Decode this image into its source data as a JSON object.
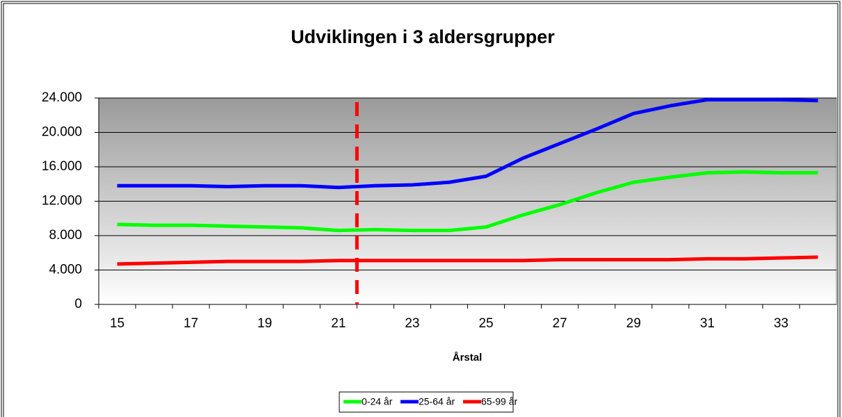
{
  "chart_data": {
    "type": "line",
    "title": "Udviklingen i 3 aldersgrupper",
    "xlabel": "Årstal",
    "x": [
      15,
      16,
      17,
      18,
      19,
      20,
      21,
      22,
      23,
      24,
      25,
      26,
      27,
      28,
      29,
      30,
      31,
      32,
      33,
      34
    ],
    "xlim": [
      14.5,
      34.5
    ],
    "xticks": [
      15,
      17,
      19,
      21,
      23,
      25,
      27,
      29,
      31,
      33
    ],
    "ylim": [
      0,
      24000
    ],
    "yticks": [
      0,
      {
        "value": 4000,
        "label": "4.000"
      },
      {
        "value": 8000,
        "label": "8.000"
      },
      {
        "value": 12000,
        "label": "12.000"
      },
      {
        "value": 16000,
        "label": "16.000"
      },
      {
        "value": 20000,
        "label": "20.000"
      },
      {
        "value": 24000,
        "label": "24.000"
      }
    ],
    "grid": true,
    "legend": "bottom",
    "reference_line": {
      "x": 21.5,
      "color": "#ff0000",
      "style": "dashed"
    },
    "series": [
      {
        "name": "0-24 år",
        "color": "#00ff00",
        "values": [
          9300,
          9200,
          9200,
          9100,
          9000,
          8900,
          8600,
          8700,
          8600,
          8600,
          9000,
          10400,
          11600,
          13000,
          14200,
          14800,
          15300,
          15400,
          15300,
          15300
        ]
      },
      {
        "name": "25-64 år",
        "color": "#0000ff",
        "values": [
          13800,
          13800,
          13800,
          13700,
          13800,
          13800,
          13600,
          13800,
          13900,
          14200,
          14900,
          17000,
          18700,
          20400,
          22200,
          23100,
          23800,
          23800,
          23800,
          23700
        ]
      },
      {
        "name": "65-99 år",
        "color": "#ff0000",
        "values": [
          4700,
          4800,
          4900,
          5000,
          5000,
          5000,
          5100,
          5100,
          5100,
          5100,
          5100,
          5100,
          5200,
          5200,
          5200,
          5200,
          5300,
          5300,
          5400,
          5500
        ]
      }
    ]
  }
}
